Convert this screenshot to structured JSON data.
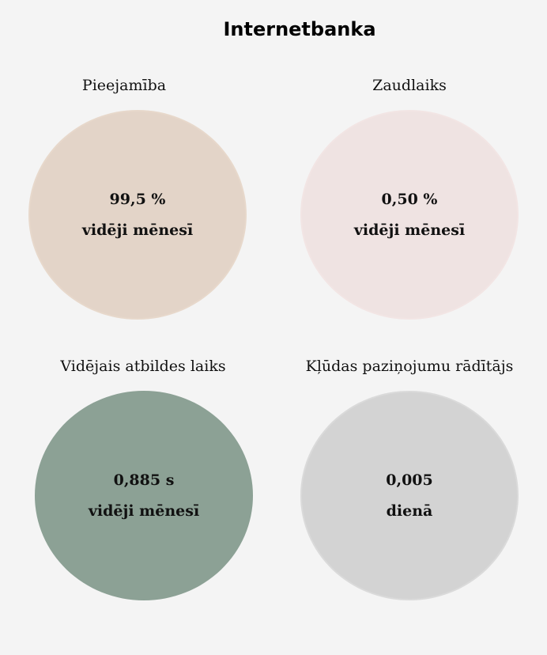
{
  "page": {
    "title": "Internetbanka"
  },
  "metrics": [
    {
      "label": "Pieejamība",
      "value": "99,5 %",
      "period": "vidēji mēnesī",
      "fill": "#e3d4c8",
      "border": "#e7d8cb"
    },
    {
      "label": "Zaudlaiks",
      "value": "0,50 %",
      "period": "vidēji mēnesī",
      "fill": "#efe3e2",
      "border": "#f2e5e4"
    },
    {
      "label": "Vidējais atbildes laiks",
      "value": "0,885 s",
      "period": "vidēji mēnesī",
      "fill": "#8ca195",
      "border": "#8ca195"
    },
    {
      "label": "Kļūdas paziņojumu rādītājs",
      "value": "0,005",
      "period": "dienā",
      "fill": "#d3d3d3",
      "border": "#dadada"
    }
  ]
}
